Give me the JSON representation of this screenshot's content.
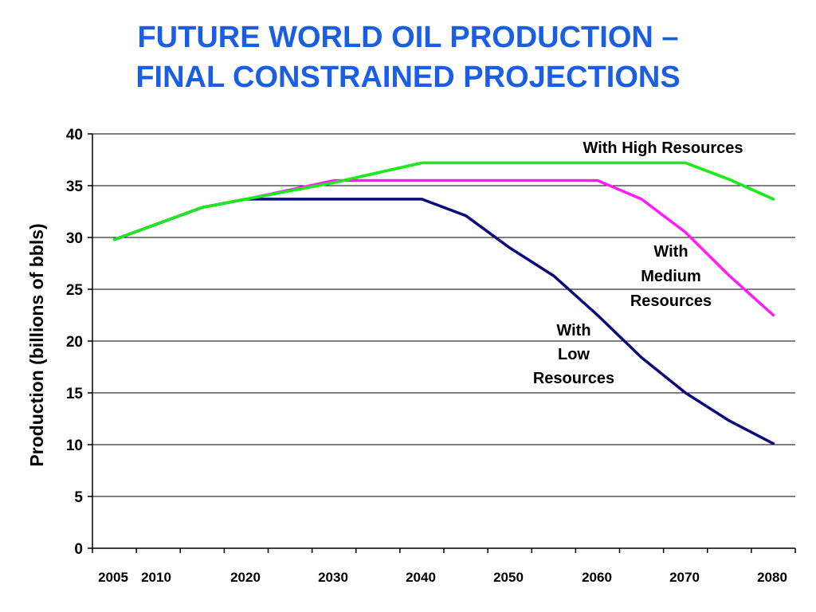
{
  "title_lines": [
    "FUTURE WORLD OIL PRODUCTION –",
    "FINAL CONSTRAINED PROJECTIONS"
  ],
  "chart_data": {
    "type": "line",
    "ylabel": "Production (billions of bbls)",
    "xlabel": "",
    "ylim": [
      0,
      40
    ],
    "y_ticks": [
      0,
      5,
      10,
      15,
      20,
      25,
      30,
      35,
      40
    ],
    "xlim": [
      2000,
      2080
    ],
    "x_tick_labels": [
      "2005",
      "2010",
      "2020",
      "2030",
      "2040",
      "2050",
      "2060",
      "2070",
      "2080"
    ],
    "grid": "horizontal",
    "series": [
      {
        "color": "#1aeb1a",
        "x": [
          2002.5,
          2012.5,
          2017.5,
          2027.5,
          2037.5,
          2047.5,
          2057.5,
          2067.5,
          2072.5,
          2077.5
        ],
        "y": [
          29.8,
          32.9,
          33.7,
          35.3,
          37.2,
          37.2,
          37.2,
          37.2,
          35.6,
          33.7
        ]
      },
      {
        "color": "#ff1aff",
        "x": [
          2002.5,
          2012.5,
          2017.5,
          2027.5,
          2037.5,
          2047.5,
          2057.5,
          2062.5,
          2067.5,
          2072.5,
          2077.5
        ],
        "y": [
          29.8,
          32.9,
          33.7,
          35.5,
          35.5,
          35.5,
          35.5,
          33.7,
          30.5,
          26.3,
          22.5
        ]
      },
      {
        "color": "#0a0a7a",
        "x": [
          2002.5,
          2012.5,
          2017.5,
          2027.5,
          2037.5,
          2042.5,
          2047.5,
          2052.5,
          2057.5,
          2062.5,
          2067.5,
          2072.5,
          2077.5
        ],
        "y": [
          29.8,
          32.9,
          33.7,
          33.7,
          33.7,
          32.1,
          29.0,
          26.3,
          22.5,
          18.4,
          15.0,
          12.3,
          10.1
        ]
      }
    ],
    "annotations": [
      {
        "lines": [
          "With High Resources"
        ]
      },
      {
        "lines": [
          "With",
          "Medium",
          "Resources"
        ]
      },
      {
        "lines": [
          "With",
          "Low",
          "Resources"
        ]
      }
    ]
  }
}
